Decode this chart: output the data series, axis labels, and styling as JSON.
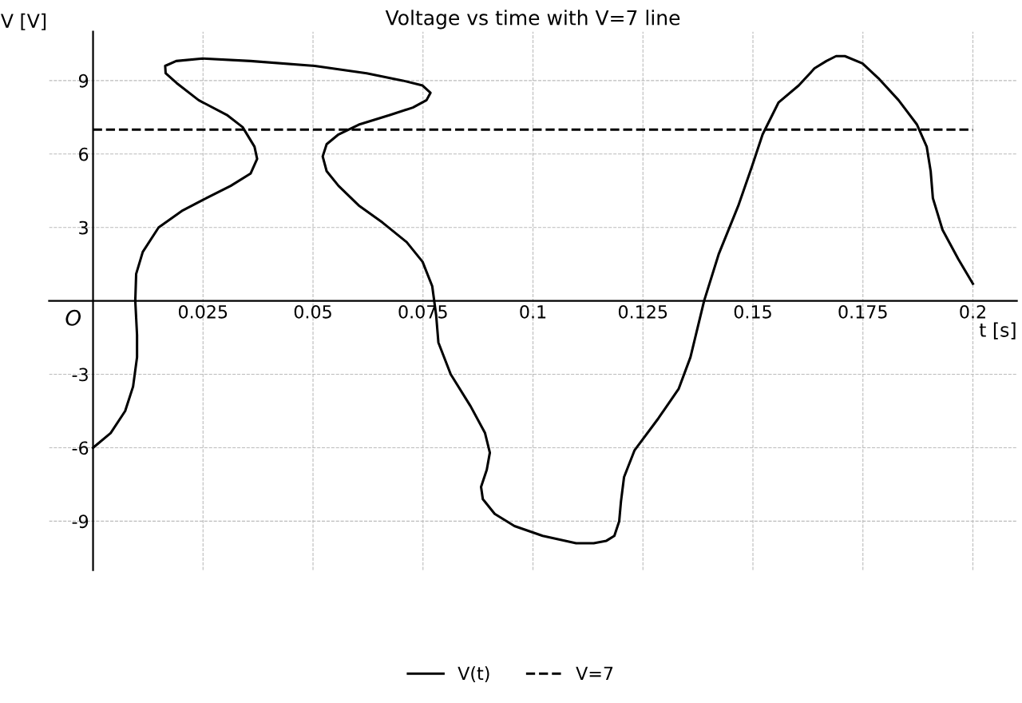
{
  "chart_data": {
    "type": "line",
    "title": "Voltage vs time with V=7 line",
    "xlabel": "t [s]",
    "ylabel": "V [V]",
    "annotations": [
      "O"
    ],
    "xlim": [
      -0.01,
      0.21
    ],
    "ylim": [
      -11,
      11
    ],
    "xticks": [
      0.025,
      0.05,
      0.075,
      0.1,
      0.125,
      0.15,
      0.175,
      0.2
    ],
    "yticks": [
      -9,
      -6,
      -3,
      3,
      6,
      9
    ],
    "grid": true,
    "legend": "bottom",
    "marker": "none",
    "series": [
      {
        "name": "V(t)",
        "color": "#000000",
        "line_style": "solid",
        "x": [
          0,
          0.004,
          0.0073,
          0.0091,
          0.01,
          0.01,
          0.0096,
          0.0098,
          0.0113,
          0.0149,
          0.0204,
          0.0258,
          0.0313,
          0.0358,
          0.0373,
          0.0367,
          0.034,
          0.0304,
          0.024,
          0.019,
          0.0165,
          0.0164,
          0.0189,
          0.0249,
          0.0358,
          0.0504,
          0.0622,
          0.0704,
          0.0749,
          0.0767,
          0.0758,
          0.0727,
          0.0676,
          0.0604,
          0.0558,
          0.0531,
          0.0522,
          0.0531,
          0.0558,
          0.0604,
          0.0658,
          0.0713,
          0.0749,
          0.0771,
          0.078,
          0.0785,
          0.0813,
          0.0858,
          0.0891,
          0.0902,
          0.0895,
          0.0882,
          0.0886,
          0.0913,
          0.0958,
          0.1022,
          0.1098,
          0.1138,
          0.1167,
          0.1185,
          0.1196,
          0.12,
          0.1207,
          0.1231,
          0.1285,
          0.1331,
          0.1358,
          0.1389,
          0.1422,
          0.1467,
          0.1498,
          0.1522,
          0.1558,
          0.1604,
          0.164,
          0.1667,
          0.1689,
          0.1709,
          0.1749,
          0.1785,
          0.1831,
          0.1873,
          0.1895,
          0.1904,
          0.1909,
          0.1931,
          0.1967,
          0.2
        ],
        "values": [
          -6.0,
          -5.4,
          -4.5,
          -3.5,
          -2.3,
          -1.4,
          0,
          1.1,
          2.0,
          3.0,
          3.7,
          4.2,
          4.7,
          5.2,
          5.8,
          6.3,
          7.1,
          7.6,
          8.2,
          8.9,
          9.3,
          9.6,
          9.8,
          9.9,
          9.8,
          9.6,
          9.3,
          9.0,
          8.8,
          8.5,
          8.2,
          7.9,
          7.6,
          7.2,
          6.8,
          6.4,
          5.9,
          5.3,
          4.7,
          3.9,
          3.2,
          2.4,
          1.6,
          0.6,
          -0.6,
          -1.7,
          -3.0,
          -4.3,
          -5.4,
          -6.2,
          -6.9,
          -7.6,
          -8.1,
          -8.7,
          -9.2,
          -9.6,
          -9.9,
          -9.9,
          -9.8,
          -9.6,
          -9.0,
          -8.2,
          -7.2,
          -6.1,
          -4.8,
          -3.6,
          -2.3,
          0,
          1.9,
          3.9,
          5.5,
          6.8,
          8.1,
          8.8,
          9.5,
          9.8,
          10.0,
          10.0,
          9.7,
          9.1,
          8.2,
          7.2,
          6.3,
          5.3,
          4.2,
          2.9,
          1.7,
          0.7
        ]
      },
      {
        "name": "V=7",
        "color": "#000000",
        "line_style": "dashed",
        "x": [
          0,
          0.2
        ],
        "values": [
          7,
          7
        ]
      }
    ]
  }
}
